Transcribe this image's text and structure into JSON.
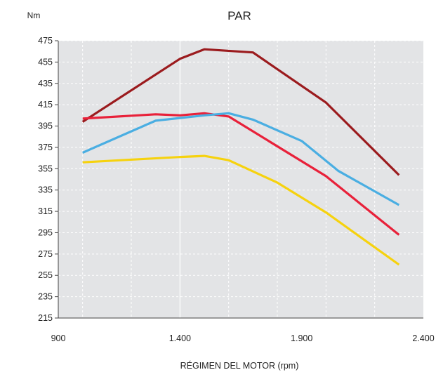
{
  "chart_data": {
    "type": "line",
    "title": "PAR",
    "ylabel": "Nm",
    "xlabel": "RÉGIMEN DEL MOTOR (rpm)",
    "xlim": [
      900,
      2400
    ],
    "ylim": [
      215,
      475
    ],
    "xticks": [
      900,
      1400,
      1900,
      2400
    ],
    "xtick_labels": [
      "900",
      "1.400",
      "1.900",
      "2.400"
    ],
    "xgrid": [
      1000,
      1200,
      1400,
      1600,
      1800,
      2000,
      2200
    ],
    "yticks": [
      215,
      235,
      255,
      275,
      295,
      315,
      335,
      355,
      375,
      395,
      415,
      435,
      455,
      475
    ],
    "grid": true,
    "plot_background": "#e3e4e6",
    "series": [
      {
        "color": "#9b1b1e",
        "x": [
          1000,
          1400,
          1500,
          1700,
          2000,
          2300
        ],
        "y": [
          399,
          458,
          467,
          464,
          417,
          349
        ]
      },
      {
        "color": "#e8213a",
        "x": [
          1000,
          1300,
          1400,
          1500,
          1600,
          2000,
          2300
        ],
        "y": [
          402,
          406,
          405,
          407,
          404,
          348,
          293
        ]
      },
      {
        "color": "#4aaee2",
        "x": [
          1000,
          1300,
          1500,
          1600,
          1700,
          1900,
          2050,
          2300
        ],
        "y": [
          370,
          400,
          405,
          407,
          401,
          381,
          353,
          321
        ]
      },
      {
        "color": "#f6d20e",
        "x": [
          1000,
          1400,
          1500,
          1600,
          1800,
          2000,
          2300
        ],
        "y": [
          361,
          366,
          367,
          363,
          342,
          314,
          265
        ]
      }
    ]
  }
}
